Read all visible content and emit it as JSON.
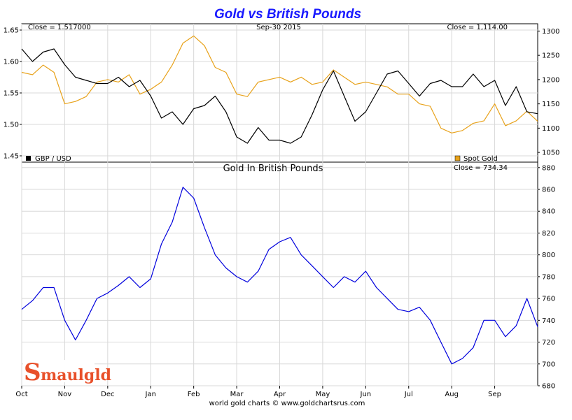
{
  "chart_data": [
    {
      "type": "line",
      "title": "Gold vs British Pounds",
      "date_label": "Sep-30  2015",
      "x_labels": [
        "Oct",
        "Nov",
        "Dec",
        "Jan",
        "Feb",
        "Mar",
        "Apr",
        "May",
        "Jun",
        "Jul",
        "Aug",
        "Sep"
      ],
      "left_axis": {
        "ylim": [
          1.44,
          1.66
        ],
        "ticks": [
          "1.65",
          "1.60",
          "1.55",
          "1.50",
          "1.45"
        ]
      },
      "right_axis": {
        "ylim": [
          1030,
          1315
        ],
        "ticks": [
          "1300",
          "1250",
          "1200",
          "1150",
          "1100",
          "1050"
        ]
      },
      "series": [
        {
          "name": "GBP / USD",
          "close_label": "Close = 1.517000",
          "color": "#000000",
          "axis": "left",
          "x": [
            0,
            0.25,
            0.5,
            0.75,
            1,
            1.25,
            1.5,
            1.75,
            2,
            2.25,
            2.5,
            2.75,
            3,
            3.25,
            3.5,
            3.75,
            4,
            4.25,
            4.5,
            4.75,
            5,
            5.25,
            5.5,
            5.75,
            6,
            6.25,
            6.5,
            6.75,
            7,
            7.25,
            7.5,
            7.75,
            8,
            8.25,
            8.5,
            8.75,
            9,
            9.25,
            9.5,
            9.75,
            10,
            10.25,
            10.5,
            10.75,
            11,
            11.25,
            11.5,
            11.75,
            12
          ],
          "values": [
            1.62,
            1.6,
            1.615,
            1.62,
            1.595,
            1.575,
            1.57,
            1.565,
            1.565,
            1.575,
            1.56,
            1.57,
            1.545,
            1.51,
            1.52,
            1.5,
            1.525,
            1.53,
            1.545,
            1.52,
            1.48,
            1.47,
            1.495,
            1.475,
            1.475,
            1.47,
            1.48,
            1.515,
            1.555,
            1.585,
            1.545,
            1.505,
            1.52,
            1.55,
            1.58,
            1.585,
            1.565,
            1.545,
            1.565,
            1.57,
            1.56,
            1.56,
            1.58,
            1.56,
            1.57,
            1.53,
            1.56,
            1.52,
            1.517
          ]
        },
        {
          "name": "Spot Gold",
          "close_label": "Close = 1,114.00",
          "color": "#e8a21a",
          "axis": "right",
          "x": [
            0,
            0.25,
            0.5,
            0.75,
            1,
            1.25,
            1.5,
            1.75,
            2,
            2.25,
            2.5,
            2.75,
            3,
            3.25,
            3.5,
            3.75,
            4,
            4.25,
            4.5,
            4.75,
            5,
            5.25,
            5.5,
            5.75,
            6,
            6.25,
            6.5,
            6.75,
            7,
            7.25,
            7.5,
            7.75,
            8,
            8.25,
            8.5,
            8.75,
            9,
            9.25,
            9.5,
            9.75,
            10,
            10.25,
            10.5,
            10.75,
            11,
            11.25,
            11.5,
            11.75,
            12
          ],
          "values": [
            1215,
            1210,
            1230,
            1215,
            1150,
            1155,
            1165,
            1195,
            1200,
            1195,
            1210,
            1170,
            1180,
            1195,
            1230,
            1275,
            1290,
            1270,
            1225,
            1215,
            1170,
            1165,
            1195,
            1200,
            1205,
            1195,
            1205,
            1190,
            1195,
            1220,
            1205,
            1190,
            1195,
            1190,
            1185,
            1170,
            1170,
            1150,
            1145,
            1100,
            1090,
            1095,
            1110,
            1115,
            1150,
            1105,
            1115,
            1135,
            1114
          ]
        }
      ]
    },
    {
      "type": "line",
      "title": "Gold In British Pounds",
      "close_label": "Close = 734.34",
      "x_labels": [
        "Oct",
        "Nov",
        "Dec",
        "Jan",
        "Feb",
        "Mar",
        "Apr",
        "May",
        "Jun",
        "Jul",
        "Aug",
        "Sep"
      ],
      "right_axis": {
        "ylim": [
          680,
          885
        ],
        "ticks": [
          "880",
          "860",
          "840",
          "820",
          "800",
          "780",
          "760",
          "740",
          "720",
          "700",
          "680"
        ]
      },
      "series": [
        {
          "color": "#0000dd",
          "x": [
            0,
            0.25,
            0.5,
            0.75,
            1,
            1.25,
            1.5,
            1.75,
            2,
            2.25,
            2.5,
            2.75,
            3,
            3.25,
            3.5,
            3.75,
            4,
            4.25,
            4.5,
            4.75,
            5,
            5.25,
            5.5,
            5.75,
            6,
            6.25,
            6.5,
            6.75,
            7,
            7.25,
            7.5,
            7.75,
            8,
            8.25,
            8.5,
            8.75,
            9,
            9.25,
            9.5,
            9.75,
            10,
            10.25,
            10.5,
            10.75,
            11,
            11.25,
            11.5,
            11.75,
            12
          ],
          "values": [
            750,
            758,
            770,
            770,
            740,
            722,
            740,
            760,
            765,
            772,
            780,
            770,
            778,
            810,
            830,
            862,
            852,
            825,
            800,
            788,
            780,
            775,
            785,
            805,
            812,
            816,
            800,
            790,
            780,
            770,
            780,
            775,
            785,
            770,
            760,
            750,
            748,
            752,
            740,
            720,
            700,
            705,
            715,
            740,
            740,
            725,
            735,
            760,
            734
          ]
        }
      ]
    }
  ],
  "footer": "world gold charts © www.goldchartsrus.com",
  "logo_text": "Smaulgld",
  "logo_initial": "S",
  "logo_rest": "maulgld"
}
